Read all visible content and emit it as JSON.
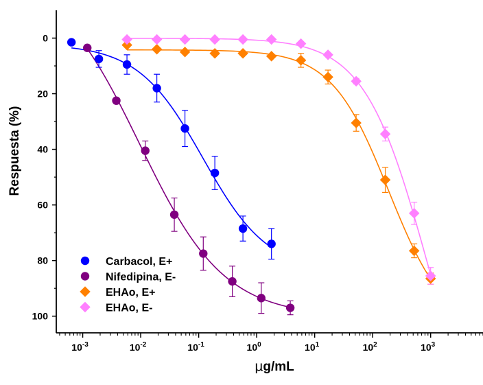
{
  "chart_data": {
    "type": "scatter",
    "title": "",
    "xlabel_prefix": "μ",
    "xlabel_rest": "g/mL",
    "ylabel": "Respuesta (%)",
    "x_scale": "log10",
    "xlim": [
      0.00035,
      8000
    ],
    "ylim": [
      -10,
      106
    ],
    "y_inverted": true,
    "yticks": [
      0,
      20,
      40,
      60,
      80,
      100
    ],
    "yticks_labels": [
      "0",
      "20",
      "40",
      "60",
      "80",
      "100"
    ],
    "xticks": [
      0.001,
      0.01,
      0.1,
      1,
      10,
      100,
      1000
    ],
    "xticks_labels": [
      {
        "base": "10",
        "exp": "-3"
      },
      {
        "base": "10",
        "exp": "-2"
      },
      {
        "base": "10",
        "exp": "-1"
      },
      {
        "base": "10",
        "exp": "0"
      },
      {
        "base": "10",
        "exp": "1"
      },
      {
        "base": "10",
        "exp": "2"
      },
      {
        "base": "10",
        "exp": "3"
      }
    ],
    "legend_position": "bottom-left",
    "series": [
      {
        "name": "Carbacol, E+",
        "marker": "circle",
        "color": "#0000ff",
        "x": [
          0.00064,
          0.0019,
          0.0058,
          0.019,
          0.058,
          0.19,
          0.58,
          1.8
        ],
        "y": [
          1.5,
          7.5,
          9.5,
          18,
          32.5,
          48.5,
          68.5,
          74
        ],
        "err": [
          0,
          3,
          3.5,
          5,
          6.5,
          6,
          4.5,
          5.5
        ]
      },
      {
        "name": "Nifedipina, E-",
        "marker": "circle",
        "color": "#800080",
        "x": [
          0.0012,
          0.0038,
          0.012,
          0.038,
          0.12,
          0.38,
          1.2,
          3.8
        ],
        "y": [
          3.5,
          22.5,
          40.5,
          63.5,
          77.5,
          87.5,
          93.5,
          97
        ],
        "err": [
          0,
          0,
          3.5,
          6,
          6,
          5.5,
          5.5,
          2.5
        ]
      },
      {
        "name": "EHAo, E+",
        "marker": "diamond",
        "color": "#ff8000",
        "x": [
          0.0058,
          0.019,
          0.058,
          0.19,
          0.58,
          1.8,
          5.8,
          17,
          52,
          165,
          520,
          1000
        ],
        "y": [
          2.5,
          4,
          5,
          5.5,
          5.5,
          6.5,
          8,
          14,
          30.5,
          51,
          76.5,
          86.5
        ],
        "err": [
          0,
          0,
          0,
          0,
          0,
          0,
          2.5,
          2.5,
          3,
          4.5,
          2.5,
          2
        ]
      },
      {
        "name": "EHAo, E-",
        "marker": "diamond",
        "color": "#ff80ff",
        "x": [
          0.0058,
          0.019,
          0.058,
          0.19,
          0.58,
          1.8,
          5.8,
          17,
          52,
          165,
          520,
          1000
        ],
        "y": [
          0.5,
          0.5,
          0.5,
          0.5,
          0.5,
          0.5,
          2,
          6,
          15.5,
          34.5,
          63,
          85.5
        ],
        "err": [
          0,
          0,
          0,
          0,
          0,
          0,
          0,
          0,
          1,
          2.5,
          4,
          3
        ]
      }
    ]
  }
}
